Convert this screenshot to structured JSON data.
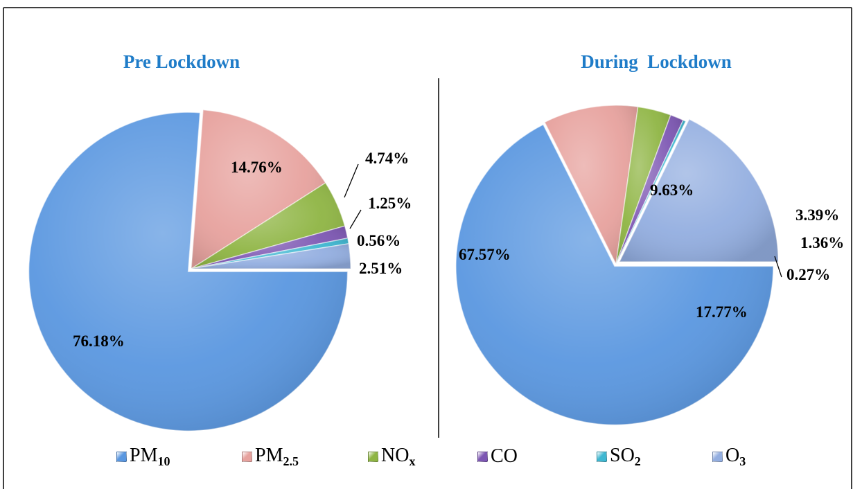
{
  "colors": {
    "title": "#1f7cc8",
    "PM10": "#5a97e0",
    "PM2.5": "#e7a29e",
    "NOx": "#8fb544",
    "CO": "#7d57b3",
    "SO2": "#3fb7d1",
    "O3": "#93aee0"
  },
  "chart_data": [
    {
      "type": "pie",
      "title": "Pre Lockdown",
      "categories": [
        "PM10",
        "PM2.5",
        "NOx",
        "CO",
        "SO2",
        "O3"
      ],
      "values": [
        76.18,
        14.76,
        4.74,
        1.25,
        0.56,
        2.51
      ],
      "labels": [
        "76.18%",
        "14.76%",
        "4.74%",
        "1.25%",
        "0.56%",
        "2.51%"
      ]
    },
    {
      "type": "pie",
      "title": "During  Lockdown",
      "categories": [
        "PM10",
        "PM2.5",
        "NOx",
        "CO",
        "SO2",
        "O3"
      ],
      "values": [
        67.57,
        9.63,
        3.39,
        1.36,
        0.27,
        17.77
      ],
      "labels": [
        "67.57%",
        "9.63%",
        "3.39%",
        "1.36%",
        "0.27%",
        "17.77%"
      ]
    }
  ],
  "legend": [
    {
      "base": "PM",
      "sub": "10",
      "color": "#5a97e0",
      "icon": "square-marker"
    },
    {
      "base": "PM",
      "sub": "2.5",
      "color": "#e7a29e",
      "icon": "square-marker"
    },
    {
      "base": "NO",
      "sub": "x",
      "color": "#8fb544",
      "icon": "square-marker"
    },
    {
      "base": "CO",
      "sub": "",
      "color": "#7d57b3",
      "icon": "square-marker"
    },
    {
      "base": "SO",
      "sub": "2",
      "color": "#3fb7d1",
      "icon": "square-marker"
    },
    {
      "base": "O",
      "sub": "3",
      "color": "#93aee0",
      "icon": "square-marker"
    }
  ]
}
